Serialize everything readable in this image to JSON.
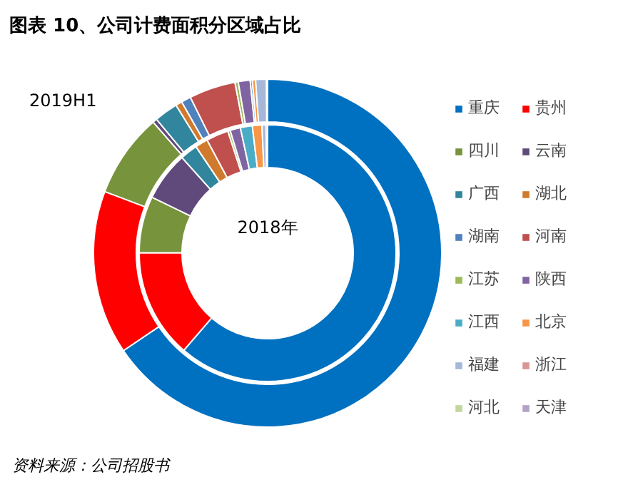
{
  "chart_data": {
    "type": "donut",
    "title": "图表 10、公司计费面积分区域占比",
    "categories": [
      "重庆",
      "贵州",
      "四川",
      "云南",
      "广西",
      "湖北",
      "湖南",
      "河南",
      "江苏",
      "陕西",
      "江西",
      "北京",
      "福建",
      "浙江",
      "河北",
      "天津"
    ],
    "colors": [
      "#0070c0",
      "#ff0000",
      "#77933c",
      "#604a7b",
      "#31859c",
      "#d07a2e",
      "#4f81bd",
      "#c0504d",
      "#9bbb59",
      "#8064a2",
      "#4bacc6",
      "#f79646",
      "#a6b7d8",
      "#d99694",
      "#c3d69b",
      "#b3a2c7"
    ],
    "series": [
      {
        "name": "2018年",
        "values": [
          61.2,
          13.7,
          7.1,
          6.2,
          2.2,
          1.6,
          null,
          2.8,
          0.3,
          1.3,
          1.5,
          1.2,
          0.5,
          0.2,
          null,
          null
        ]
      },
      {
        "name": "2019H1",
        "values": [
          65.4,
          15.2,
          7.8,
          0.4,
          2.2,
          0.6,
          0.9,
          4.3,
          0.3,
          1.1,
          0.2,
          0.3,
          1.0,
          0.1,
          null,
          null
        ]
      }
    ],
    "legend": "right",
    "annotations": [
      "资料来源：公司招股书"
    ]
  }
}
